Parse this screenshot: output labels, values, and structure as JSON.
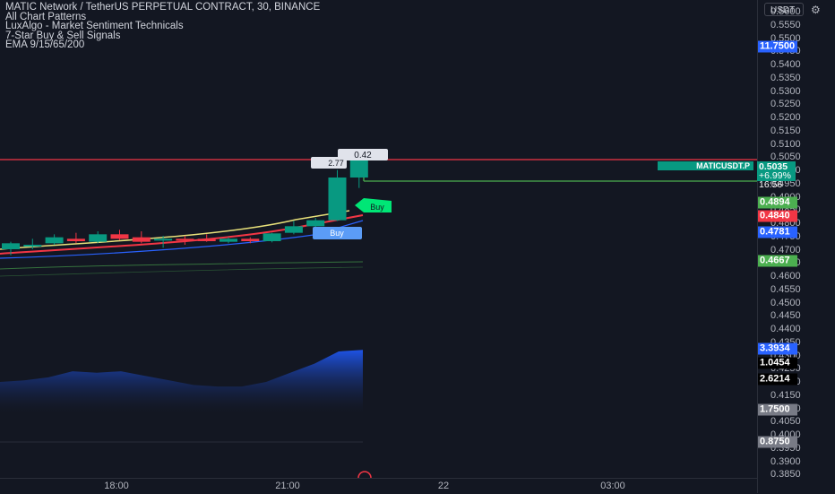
{
  "legend": {
    "title": "MATIC Network / TetherUS PERPETUAL CONTRACT, 30, BINANCE",
    "indicators": [
      "All Chart Patterns",
      "LuxAlgo - Market Sentiment Technicals",
      "7-Star Buy & Sell Signals",
      "EMA 9/15/65/200"
    ]
  },
  "toolbar": {
    "currency": "USDT",
    "settings_icon": "gear-icon"
  },
  "price_axis": {
    "ticks": [
      "0.5600",
      "0.5550",
      "0.5500",
      "0.5450",
      "0.5400",
      "0.5350",
      "0.5300",
      "0.5250",
      "0.5200",
      "0.5150",
      "0.5100",
      "0.5050",
      "0.5000",
      "0.4950",
      "0.4900",
      "0.4850",
      "0.4800",
      "0.4750",
      "0.4700",
      "0.4650",
      "0.4600",
      "0.4550",
      "0.4500",
      "0.4450",
      "0.4400",
      "0.4350",
      "0.4300",
      "0.4250",
      "0.4200",
      "0.4150",
      "0.4100",
      "0.4050",
      "0.4000",
      "0.3950",
      "0.3900",
      "0.3850"
    ],
    "tags": [
      {
        "label": "11.7500",
        "color": "#2962ff"
      },
      {
        "label": "0.4894",
        "color": "#4caf50"
      },
      {
        "label": "0.4840",
        "color": "#f23645"
      },
      {
        "label": "0.4781",
        "color": "#2962ff"
      },
      {
        "label": "0.4667",
        "color": "#4caf50"
      },
      {
        "label": "3.3934",
        "color": "#2962ff"
      },
      {
        "label": "1.0454",
        "color": "#000000"
      },
      {
        "label": "2.6214",
        "color": "#000000"
      },
      {
        "label": "1.7500",
        "color": "#787b86"
      },
      {
        "label": "0.8750",
        "color": "#787b86"
      }
    ]
  },
  "current_price": {
    "symbol": "MATICUSDT.P",
    "price": "0.5035",
    "change": "+6.99%",
    "countdown": "16:56",
    "color": "#089981"
  },
  "time_axis": {
    "labels": [
      "18:00",
      "21:00",
      "22",
      "03:00"
    ]
  },
  "chart_data": {
    "type": "candlestick",
    "bull_color": "#089981",
    "bear_color": "#f23645",
    "candles": [
      {
        "o": 0.4735,
        "h": 0.476,
        "l": 0.4715,
        "c": 0.4755
      },
      {
        "o": 0.4745,
        "h": 0.477,
        "l": 0.4735,
        "c": 0.475
      },
      {
        "o": 0.4755,
        "h": 0.4785,
        "l": 0.475,
        "c": 0.4775
      },
      {
        "o": 0.477,
        "h": 0.479,
        "l": 0.4755,
        "c": 0.4762
      },
      {
        "o": 0.476,
        "h": 0.4795,
        "l": 0.4755,
        "c": 0.4785
      },
      {
        "o": 0.4785,
        "h": 0.48,
        "l": 0.4765,
        "c": 0.477
      },
      {
        "o": 0.4775,
        "h": 0.4795,
        "l": 0.4755,
        "c": 0.476
      },
      {
        "o": 0.4765,
        "h": 0.478,
        "l": 0.474,
        "c": 0.477
      },
      {
        "o": 0.477,
        "h": 0.478,
        "l": 0.475,
        "c": 0.4765
      },
      {
        "o": 0.477,
        "h": 0.4785,
        "l": 0.476,
        "c": 0.4762
      },
      {
        "o": 0.476,
        "h": 0.4775,
        "l": 0.4755,
        "c": 0.477
      },
      {
        "o": 0.477,
        "h": 0.4775,
        "l": 0.4755,
        "c": 0.4762
      },
      {
        "o": 0.4762,
        "h": 0.479,
        "l": 0.4758,
        "c": 0.4788
      },
      {
        "o": 0.479,
        "h": 0.483,
        "l": 0.4785,
        "c": 0.4812
      },
      {
        "o": 0.4812,
        "h": 0.484,
        "l": 0.4805,
        "c": 0.4832
      },
      {
        "o": 0.4832,
        "h": 0.5,
        "l": 0.483,
        "c": 0.4975
      },
      {
        "o": 0.4975,
        "h": 0.504,
        "l": 0.494,
        "c": 0.5035
      }
    ],
    "annotations": {
      "box_top": "0.42",
      "box_left": "2.77",
      "buy_signal_1": "Buy",
      "buy_signal_2": "Buy"
    },
    "histogram_levels": [
      0.4,
      0.42,
      0.46,
      0.54,
      0.52,
      0.54,
      0.48,
      0.42,
      0.36,
      0.34,
      0.34,
      0.4,
      0.52,
      0.64,
      0.8,
      0.82
    ]
  }
}
